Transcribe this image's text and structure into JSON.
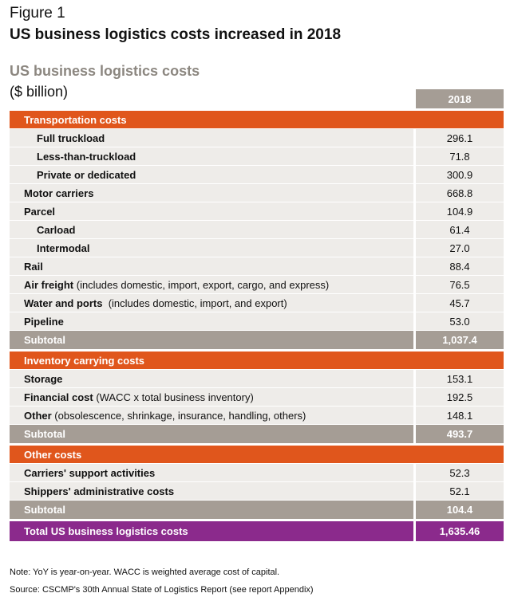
{
  "header": {
    "figure": "Figure 1",
    "title": "US business logistics costs increased in 2018",
    "subtitle": "US business logistics costs",
    "unit": "($ billion)",
    "column": "2018"
  },
  "table": {
    "sections": [
      {
        "title": "Transportation costs",
        "rows": [
          {
            "label": "Full truckload",
            "value": "296.1",
            "indent": true
          },
          {
            "label": "Less-than-truckload",
            "value": "71.8",
            "indent": true
          },
          {
            "label": "Private or dedicated",
            "value": "300.9",
            "indent": true
          },
          {
            "label": "Motor carriers",
            "value": "668.8"
          },
          {
            "label": "Parcel",
            "value": "104.9"
          },
          {
            "label": "Carload",
            "value": "61.4",
            "indent": true
          },
          {
            "label": "Intermodal",
            "value": "27.0",
            "indent": true
          },
          {
            "label": "Rail",
            "value": "88.4"
          },
          {
            "label": "Air freight",
            "note": " (includes domestic, import, export, cargo, and express)",
            "value": "76.5"
          },
          {
            "label": "Water and ports",
            "note": "  (includes domestic, import, and export)",
            "value": "45.7"
          },
          {
            "label": "Pipeline",
            "value": "53.0"
          }
        ],
        "subtotal": {
          "label": "Subtotal",
          "value": "1,037.4"
        }
      },
      {
        "title": "Inventory carrying costs",
        "rows": [
          {
            "label": "Storage",
            "value": "153.1"
          },
          {
            "label": "Financial cost",
            "note": " (WACC x total business inventory)",
            "value": "192.5"
          },
          {
            "label": "Other",
            "note": " (obsolescence, shrinkage, insurance, handling, others)",
            "value": "148.1"
          }
        ],
        "subtotal": {
          "label": "Subtotal",
          "value": "493.7"
        }
      },
      {
        "title": "Other costs",
        "rows": [
          {
            "label": "Carriers' support activities",
            "value": "52.3"
          },
          {
            "label": "Shippers' administrative costs",
            "value": "52.1"
          }
        ],
        "subtotal": {
          "label": "Subtotal",
          "value": "104.4"
        }
      }
    ],
    "total": {
      "label": "Total US business logistics costs",
      "value": "1,635.46"
    }
  },
  "notes": [
    "Note: YoY is year-on-year. WACC is weighted average cost of capital.",
    "Source: CSCMP's 30th Annual State of Logistics Report (see report Appendix)"
  ]
}
